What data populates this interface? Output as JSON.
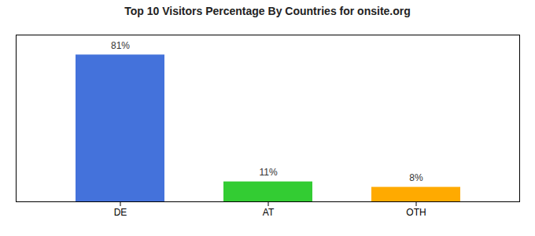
{
  "chart_data": {
    "type": "bar",
    "title": "Top 10 Visitors Percentage By Countries for onsite.org",
    "categories": [
      "DE",
      "AT",
      "OTH"
    ],
    "values": [
      81,
      11,
      8
    ],
    "value_labels": [
      "81%",
      "11%",
      "8%"
    ],
    "colors": [
      "#4472db",
      "#33cc33",
      "#ffaa00"
    ],
    "ylim": [
      0,
      92
    ],
    "yticks": [],
    "grid": false,
    "data_labels": true,
    "tick_labels": "x"
  }
}
